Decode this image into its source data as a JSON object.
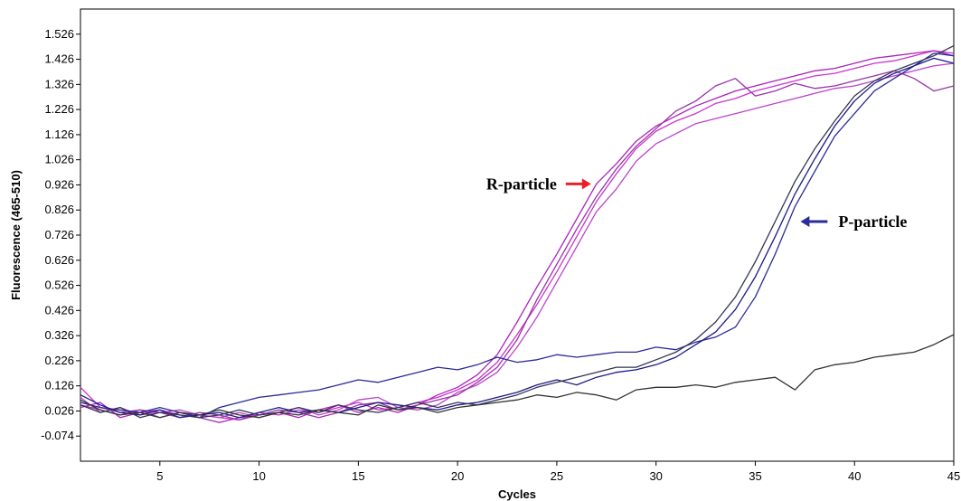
{
  "chart_data": {
    "type": "line",
    "title": "",
    "xlabel": "Cycles",
    "ylabel": "Fluorescence (465-510)",
    "xlim": [
      1,
      45
    ],
    "ylim": [
      -0.174,
      1.626
    ],
    "xticks": [
      5,
      10,
      15,
      20,
      25,
      30,
      35,
      40,
      45
    ],
    "yticks": [
      -0.074,
      0.026,
      0.126,
      0.226,
      0.326,
      0.426,
      0.526,
      0.626,
      0.726,
      0.826,
      0.926,
      1.026,
      1.126,
      1.226,
      1.326,
      1.426,
      1.526
    ],
    "ytick_labels": [
      "-0.074",
      "0.026",
      "0.126",
      "0.226",
      "0.326",
      "0.426",
      "0.526",
      "0.626",
      "0.726",
      "0.826",
      "0.926",
      "1.026",
      "1.126",
      "1.226",
      "1.326",
      "1.426",
      "1.526"
    ],
    "grid": false,
    "legend": "none",
    "x": [
      1,
      2,
      3,
      4,
      5,
      6,
      7,
      8,
      9,
      10,
      11,
      12,
      13,
      14,
      15,
      16,
      17,
      18,
      19,
      20,
      21,
      22,
      23,
      24,
      25,
      26,
      27,
      28,
      29,
      30,
      31,
      32,
      33,
      34,
      35,
      36,
      37,
      38,
      39,
      40,
      41,
      42,
      43,
      44,
      45
    ],
    "series": [
      {
        "color": "#cc33cc",
        "values": [
          0.12,
          0.04,
          0.02,
          0.03,
          0.0,
          0.02,
          0.01,
          0.0,
          -0.01,
          0.02,
          0.01,
          0.03,
          0.02,
          0.04,
          0.06,
          0.03,
          0.04,
          0.06,
          0.08,
          0.11,
          0.15,
          0.22,
          0.33,
          0.45,
          0.58,
          0.72,
          0.86,
          0.97,
          1.07,
          1.14,
          1.18,
          1.21,
          1.25,
          1.27,
          1.3,
          1.32,
          1.34,
          1.36,
          1.37,
          1.39,
          1.41,
          1.42,
          1.44,
          1.46,
          1.45
        ]
      },
      {
        "color": "#aa22bb",
        "values": [
          0.04,
          0.06,
          0.0,
          0.02,
          0.03,
          0.01,
          0.0,
          -0.02,
          0.0,
          0.01,
          0.02,
          0.0,
          0.03,
          0.05,
          0.02,
          0.04,
          0.02,
          0.05,
          0.09,
          0.12,
          0.17,
          0.25,
          0.38,
          0.52,
          0.65,
          0.79,
          0.93,
          1.01,
          1.1,
          1.16,
          1.2,
          1.24,
          1.27,
          1.3,
          1.32,
          1.34,
          1.36,
          1.38,
          1.39,
          1.41,
          1.43,
          1.44,
          1.45,
          1.46,
          1.44
        ]
      },
      {
        "color": "#bb44cc",
        "values": [
          0.08,
          0.02,
          0.04,
          0.01,
          0.02,
          0.03,
          0.01,
          0.0,
          0.02,
          0.0,
          0.02,
          0.04,
          0.01,
          0.03,
          0.07,
          0.08,
          0.04,
          0.03,
          0.05,
          0.1,
          0.13,
          0.18,
          0.28,
          0.4,
          0.54,
          0.68,
          0.82,
          0.91,
          1.02,
          1.09,
          1.13,
          1.17,
          1.19,
          1.21,
          1.23,
          1.25,
          1.27,
          1.29,
          1.31,
          1.32,
          1.34,
          1.36,
          1.38,
          1.4,
          1.41
        ]
      },
      {
        "color": "#9933aa",
        "values": [
          0.05,
          0.03,
          0.01,
          0.03,
          0.02,
          0.0,
          0.02,
          0.01,
          -0.01,
          0.01,
          0.03,
          0.02,
          0.0,
          0.02,
          0.05,
          0.06,
          0.03,
          0.05,
          0.07,
          0.09,
          0.14,
          0.2,
          0.31,
          0.47,
          0.61,
          0.75,
          0.88,
          0.99,
          1.08,
          1.15,
          1.22,
          1.26,
          1.32,
          1.35,
          1.28,
          1.3,
          1.33,
          1.31,
          1.32,
          1.34,
          1.36,
          1.38,
          1.35,
          1.3,
          1.32
        ]
      },
      {
        "color": "#2a2a99",
        "values": [
          0.06,
          0.04,
          0.03,
          0.02,
          0.04,
          0.02,
          0.0,
          0.04,
          0.06,
          0.08,
          0.09,
          0.1,
          0.11,
          0.13,
          0.15,
          0.14,
          0.16,
          0.18,
          0.2,
          0.19,
          0.21,
          0.24,
          0.22,
          0.23,
          0.25,
          0.24,
          0.25,
          0.26,
          0.26,
          0.28,
          0.27,
          0.3,
          0.32,
          0.36,
          0.48,
          0.65,
          0.84,
          0.98,
          1.12,
          1.21,
          1.3,
          1.35,
          1.4,
          1.45,
          1.44
        ]
      },
      {
        "color": "#1a1a88",
        "values": [
          0.09,
          0.05,
          0.02,
          0.01,
          0.03,
          0.0,
          0.01,
          0.02,
          0.0,
          0.02,
          0.04,
          0.02,
          0.03,
          0.02,
          0.04,
          0.06,
          0.05,
          0.04,
          0.03,
          0.05,
          0.06,
          0.08,
          0.1,
          0.13,
          0.15,
          0.13,
          0.16,
          0.18,
          0.19,
          0.21,
          0.24,
          0.29,
          0.34,
          0.43,
          0.56,
          0.72,
          0.89,
          1.03,
          1.16,
          1.26,
          1.33,
          1.37,
          1.4,
          1.43,
          1.41
        ]
      },
      {
        "color": "#333355",
        "values": [
          0.05,
          0.02,
          0.04,
          0.0,
          0.02,
          0.01,
          0.0,
          0.01,
          0.03,
          0.01,
          0.02,
          0.04,
          0.02,
          0.05,
          0.03,
          0.02,
          0.04,
          0.06,
          0.04,
          0.06,
          0.05,
          0.07,
          0.09,
          0.12,
          0.14,
          0.16,
          0.18,
          0.2,
          0.2,
          0.23,
          0.26,
          0.31,
          0.38,
          0.48,
          0.62,
          0.78,
          0.94,
          1.07,
          1.18,
          1.28,
          1.34,
          1.38,
          1.41,
          1.44,
          1.48
        ]
      },
      {
        "color": "#333333",
        "values": [
          0.07,
          0.03,
          0.01,
          0.02,
          0.0,
          0.02,
          0.01,
          0.03,
          0.01,
          0.0,
          0.02,
          0.01,
          0.03,
          0.02,
          0.01,
          0.05,
          0.03,
          0.04,
          0.02,
          0.04,
          0.05,
          0.06,
          0.07,
          0.09,
          0.08,
          0.1,
          0.09,
          0.07,
          0.11,
          0.12,
          0.12,
          0.13,
          0.12,
          0.14,
          0.15,
          0.16,
          0.11,
          0.19,
          0.21,
          0.22,
          0.24,
          0.25,
          0.26,
          0.29,
          0.33
        ]
      }
    ],
    "annotations": [
      {
        "text": "R-particle",
        "arrow_color": "#e8202a",
        "x": 27,
        "y": 0.93
      },
      {
        "text": "P-particle",
        "arrow_color": "#2b2b99",
        "x": 37,
        "y": 0.78
      }
    ]
  }
}
